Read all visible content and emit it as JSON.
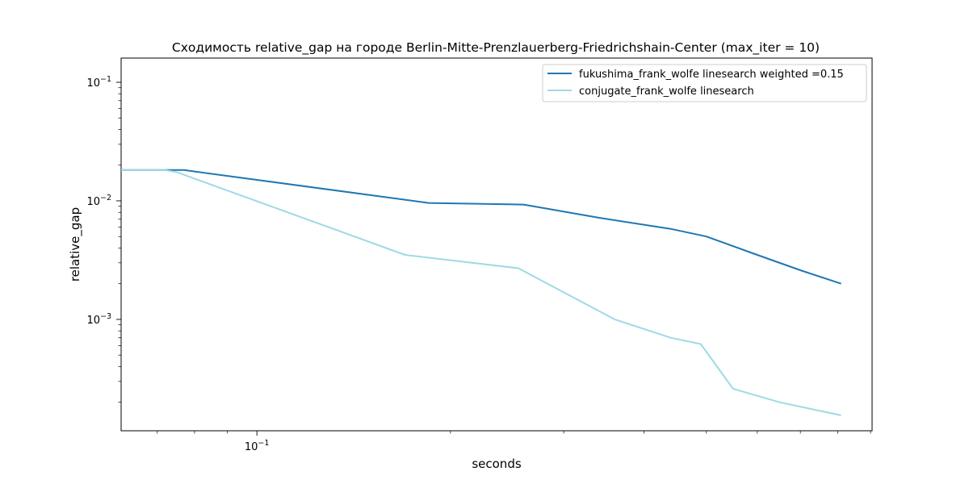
{
  "chart_data": {
    "type": "line",
    "title": "Сходимость relative_gap на городе Berlin-Mitte-Prenzlauerberg-Friedrichshain-Center  (max_iter = 10)",
    "xlabel": "seconds",
    "ylabel": "relative_gap",
    "xscale": "log",
    "yscale": "log",
    "xlim": [
      0.0615,
      0.905
    ],
    "ylim": [
      0.000115,
      0.16
    ],
    "legend": "top-right",
    "grid": false,
    "x_tick_labels": [
      {
        "value": 0.1,
        "base": "10",
        "exp": "−1"
      }
    ],
    "y_tick_labels": [
      {
        "value": 0.001,
        "base": "10",
        "exp": "−3"
      },
      {
        "value": 0.01,
        "base": "10",
        "exp": "−2"
      },
      {
        "value": 0.1,
        "base": "10",
        "exp": "−1"
      }
    ],
    "series": [
      {
        "name": "fukushima_frank_wolfe linesearch weighted =0.15",
        "color": "#1f77b4",
        "x": [
          0.0615,
          0.075,
          0.077,
          0.185,
          0.26,
          0.34,
          0.44,
          0.5,
          0.6,
          0.7,
          0.81
        ],
        "y": [
          0.0182,
          0.0182,
          0.0182,
          0.0096,
          0.0093,
          0.0072,
          0.0058,
          0.005,
          0.0035,
          0.0026,
          0.002
        ]
      },
      {
        "name": "conjugate_frank_wolfe linesearch",
        "color": "#9edae5",
        "x": [
          0.0615,
          0.072,
          0.075,
          0.17,
          0.255,
          0.36,
          0.44,
          0.49,
          0.55,
          0.65,
          0.81
        ],
        "y": [
          0.0182,
          0.0182,
          0.0175,
          0.0035,
          0.0027,
          0.001,
          0.0007,
          0.00062,
          0.00026,
          0.0002,
          0.000155
        ]
      }
    ]
  }
}
